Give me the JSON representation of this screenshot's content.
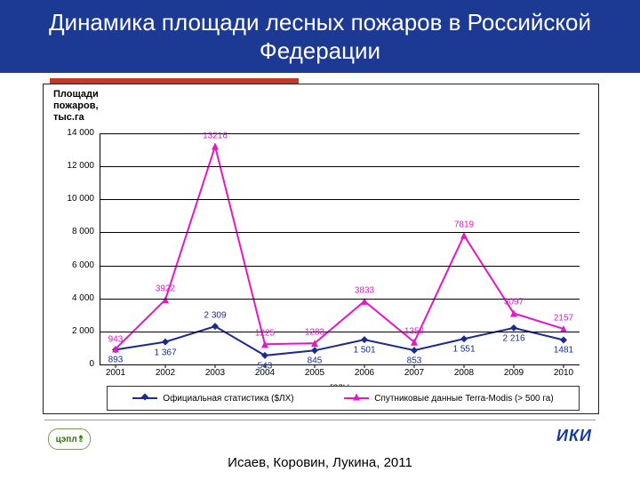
{
  "title": "Динамика площади лесных пожаров в Российской Федерации",
  "ylabel_l1": "Площади",
  "ylabel_l2": "пожаров,",
  "ylabel_l3": "тыс.га",
  "xaxis_label": "годы",
  "citation": "Исаев, Коровин, Лукина, 2011",
  "logo_left": "цэпл",
  "logo_right": "ИКИ",
  "chart": {
    "type": "line",
    "ylim": [
      0,
      14000
    ],
    "ytick_step": 2000,
    "yticks": [
      "0",
      "2 000",
      "4 000",
      "6 000",
      "8 000",
      "10 000",
      "12 000",
      "14 000"
    ],
    "categories": [
      "2001",
      "2002",
      "2003",
      "2004",
      "2005",
      "2006",
      "2007",
      "2008",
      "2009",
      "2010"
    ],
    "series": [
      {
        "name": "Официальная статистика ($ЛХ)",
        "color": "#1a2b8f",
        "marker": "diamond",
        "values": [
          893,
          1367,
          2309,
          543,
          845,
          1501,
          853,
          1551,
          2216,
          1481
        ],
        "labels": [
          "893",
          "1 367",
          "2 309",
          "543",
          "845",
          "1 501",
          "853",
          "1 551",
          "2 216",
          "1481"
        ],
        "label_color": "#1a2b8f"
      },
      {
        "name": "Спутниковые данные Terra-Modis (> 500 га)",
        "color": "#e815c9",
        "marker": "triangle",
        "values": [
          943,
          3922,
          13216,
          1225,
          1283,
          3833,
          1358,
          7819,
          3097,
          2157
        ],
        "labels": [
          "943",
          "3922",
          "13216",
          "1225",
          "1283",
          "3833",
          "1358",
          "7819",
          "3097",
          "2157"
        ],
        "label_color": "#e815c9"
      }
    ],
    "grid_color": "#000000",
    "background": "#ffffff",
    "line_width": 2,
    "marker_size": 8
  }
}
